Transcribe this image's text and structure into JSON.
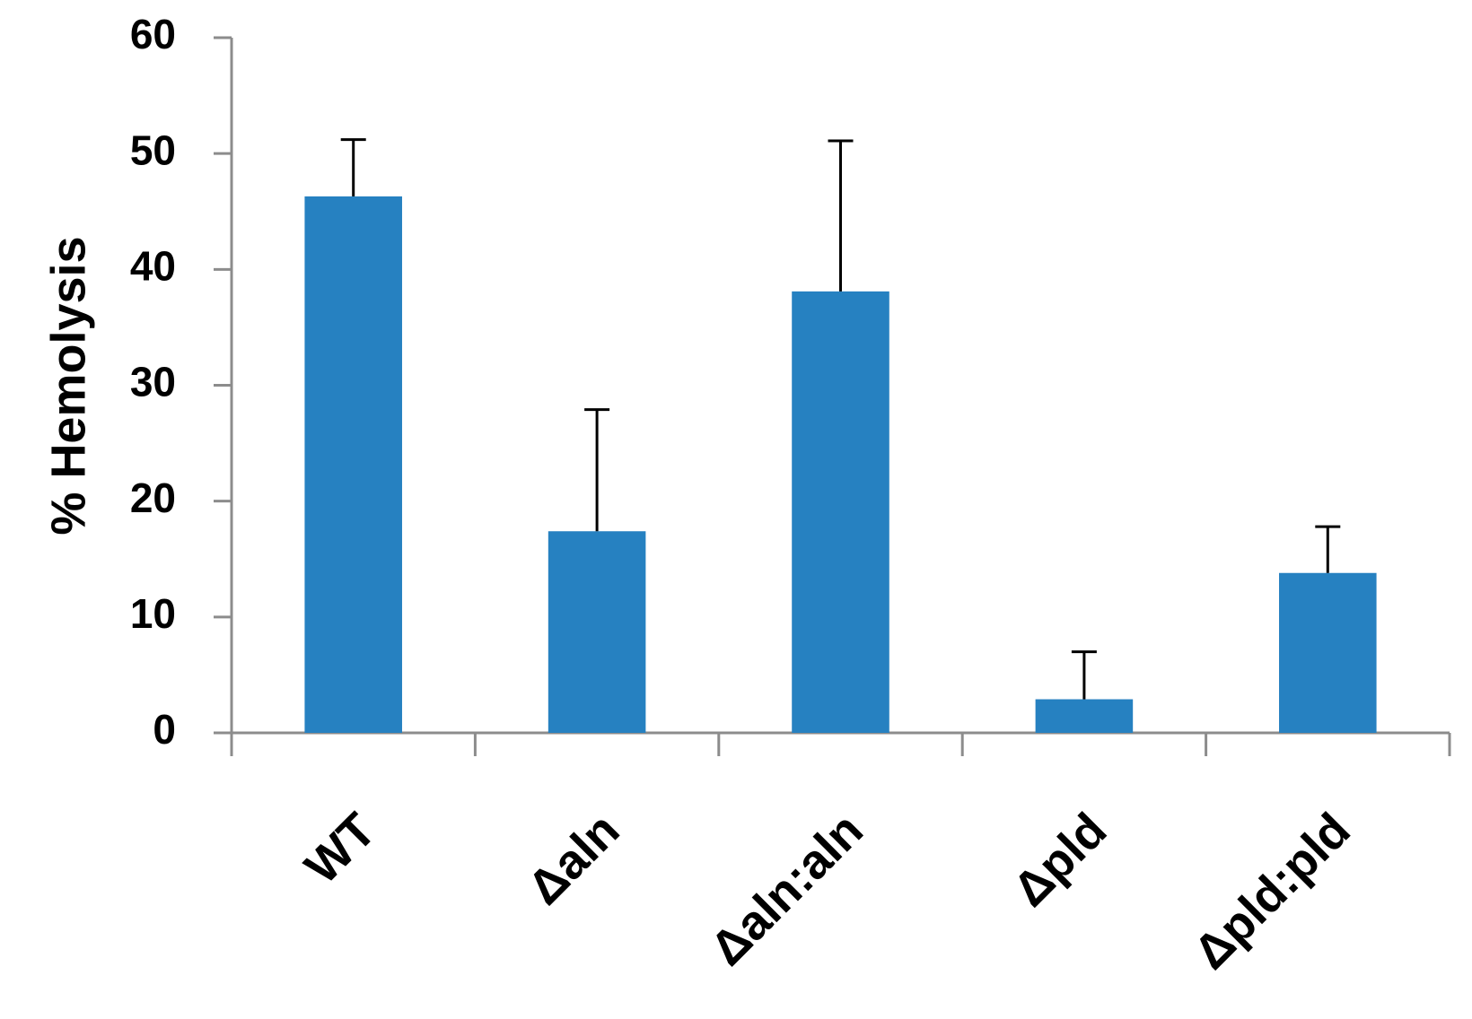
{
  "chart_data": {
    "type": "bar",
    "y_label": "% Hemolysis",
    "categories": [
      "WT",
      "Δaln",
      "Δaln:aln",
      "Δpld",
      "Δpld:pld"
    ],
    "values": [
      46.3,
      17.4,
      38.1,
      2.9,
      13.8
    ],
    "errors": [
      4.9,
      10.5,
      13.0,
      4.1,
      4.0
    ],
    "color": "#2681c1",
    "ylim": [
      0,
      60
    ],
    "yticks": [
      0,
      10,
      20,
      30,
      40,
      50,
      60
    ],
    "grid": false
  }
}
